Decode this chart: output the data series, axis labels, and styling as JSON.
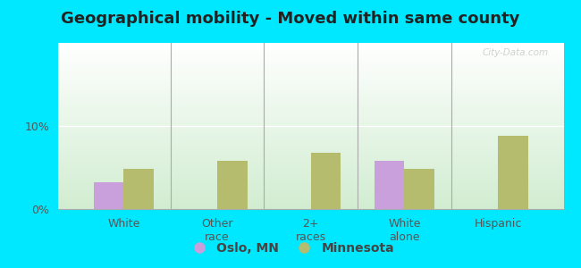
{
  "title": "Geographical mobility - Moved within same county",
  "categories": [
    "White",
    "Other\nrace",
    "2+\nraces",
    "White\nalone",
    "Hispanic"
  ],
  "oslo_values": [
    3.2,
    0.0,
    0.0,
    5.8,
    0.0
  ],
  "mn_values": [
    4.8,
    5.8,
    6.8,
    4.8,
    8.8
  ],
  "oslo_color": "#c9a0dc",
  "mn_color": "#b5bc6e",
  "ylim": [
    0,
    20
  ],
  "ytick_vals": [
    0,
    10
  ],
  "ytick_labels": [
    "0%",
    "10%"
  ],
  "bar_width": 0.32,
  "background_outer": "#00e8ff",
  "legend_oslo": "Oslo, MN",
  "legend_mn": "Minnesota",
  "title_fontsize": 13,
  "tick_fontsize": 9,
  "legend_fontsize": 10,
  "watermark": "City-Data.com"
}
